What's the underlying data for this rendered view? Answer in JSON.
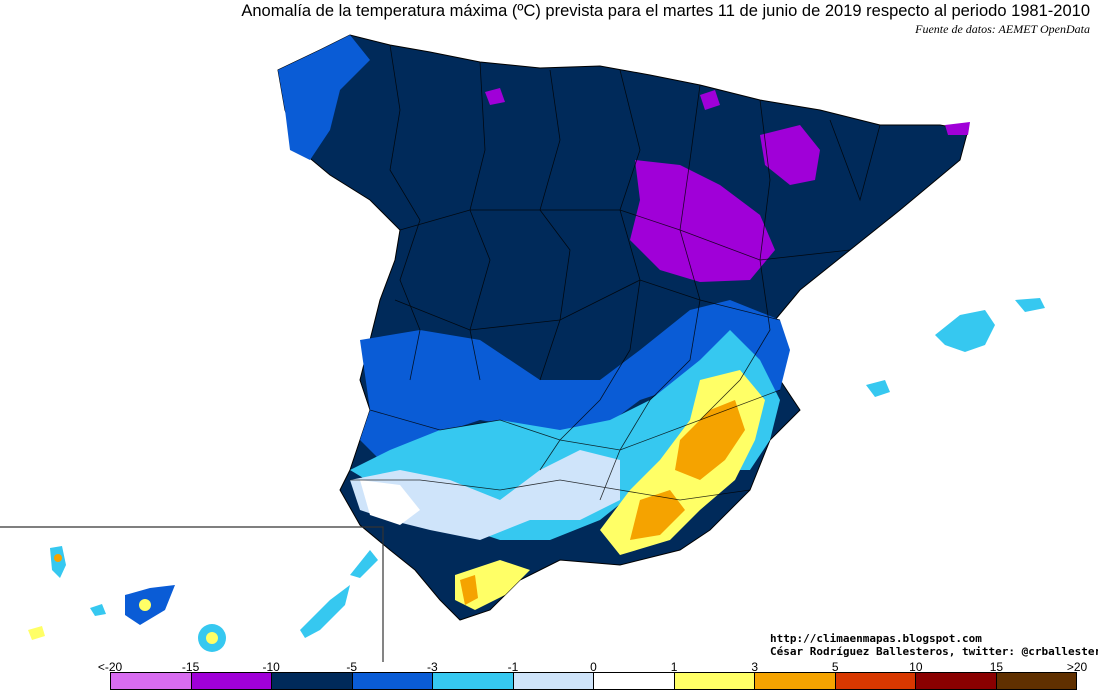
{
  "header": {
    "title": "Anomalía de la temperatura máxima (ºC) prevista para el martes 11 de junio de 2019 respecto al periodo 1981-2010",
    "source": "Fuente de datos: AEMET OpenData"
  },
  "credits": {
    "website": "http://climaenmapas.blogspot.com",
    "author": "César Rodríguez Ballesteros, twitter: @crballesteros"
  },
  "legend": {
    "ticks": [
      "<-20",
      "-15",
      "-10",
      "-5",
      "-3",
      "-1",
      "0",
      "1",
      "3",
      "5",
      "10",
      "15",
      ">20"
    ],
    "colors": [
      "#d86cf0",
      "#a000d8",
      "#002a5a",
      "#0a5cd6",
      "#36c8f0",
      "#cfe4fa",
      "#ffffff",
      "#ffff66",
      "#f5a300",
      "#d83800",
      "#8a0000",
      "#603000"
    ]
  },
  "map_regions": {
    "north_plateau": "#002a5a",
    "aragon_core": "#a000d8",
    "west_and_levante_edge": "#0a5cd6",
    "transition": "#36c8f0",
    "mild_south": "#cfe4fa",
    "warm_southeast": "#ffff66",
    "hot_southeast": "#f5a300"
  }
}
